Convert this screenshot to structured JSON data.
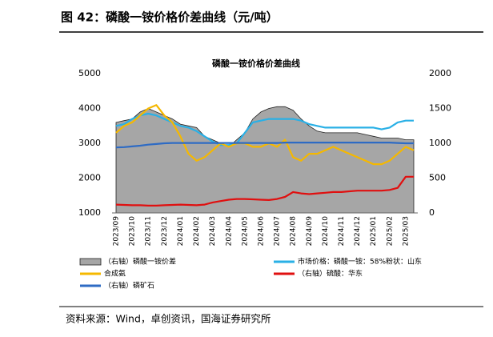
{
  "figure_title": "图 42：磷酸一铵价格价差曲线（元/吨）",
  "source": "资料来源：Wind，卓创资讯，国海证券研究所",
  "chart_data": {
    "type": "line",
    "title": "磷酸一铵价格价差曲线",
    "categories": [
      "2023/09",
      null,
      "2023/10",
      null,
      "2023/11",
      null,
      "2023/12",
      null,
      "2024/01",
      null,
      "2024/02",
      null,
      "2024/03",
      null,
      "2024/04",
      null,
      "2024/05",
      null,
      "2024/06",
      null,
      "2024/07",
      null,
      "2024/08",
      null,
      "2024/09",
      null,
      "2024/10",
      null,
      "2024/11",
      null,
      "2024/12",
      null,
      "2025/01",
      null,
      "2025/02",
      null,
      "2025/03",
      null
    ],
    "ylim": [
      1000,
      5000
    ],
    "yticks": [
      1000,
      2000,
      3000,
      4000,
      5000
    ],
    "y2lim": [
      0,
      2000
    ],
    "y2ticks": [
      0,
      500,
      1000,
      1500,
      2000
    ],
    "series": [
      {
        "name": "（右轴）磷酸一铵价差",
        "type": "area",
        "axis": "y2",
        "color": "#a6a6a6",
        "values": [
          1300,
          1325,
          1350,
          1450,
          1500,
          1450,
          1400,
          1350,
          1275,
          1250,
          1225,
          1100,
          1050,
          1000,
          950,
          1050,
          1150,
          1350,
          1450,
          1500,
          1525,
          1525,
          1475,
          1350,
          1250,
          1175,
          1150,
          1150,
          1150,
          1150,
          1150,
          1125,
          1100,
          1075,
          1075,
          1075,
          1050,
          1050
        ]
      },
      {
        "name": "市场价格：磷酸一铵：58%粉状：山东",
        "type": "line",
        "color": "#2ab0e6",
        "values": [
          3500,
          3550,
          3700,
          3800,
          3850,
          3800,
          3700,
          3600,
          3500,
          3450,
          3350,
          3200,
          3050,
          2950,
          2950,
          3000,
          3300,
          3600,
          3650,
          3700,
          3700,
          3700,
          3700,
          3650,
          3550,
          3500,
          3450,
          3450,
          3450,
          3450,
          3450,
          3450,
          3450,
          3400,
          3450,
          3600,
          3650,
          3650
        ]
      },
      {
        "name": "合成氨",
        "type": "line",
        "color": "#f5b800",
        "values": [
          3300,
          3500,
          3600,
          3800,
          4000,
          4100,
          3800,
          3600,
          3200,
          2700,
          2500,
          2600,
          2800,
          3000,
          2900,
          3000,
          3000,
          2900,
          2900,
          3000,
          2900,
          3100,
          2600,
          2500,
          2700,
          2700,
          2800,
          2900,
          2800,
          2700,
          2600,
          2500,
          2400,
          2400,
          2500,
          2700,
          2900,
          2800
        ]
      },
      {
        "name": "（右轴）硫酸：华东",
        "type": "line",
        "axis": "y2",
        "color": "#e01010",
        "values": [
          120,
          115,
          110,
          110,
          105,
          105,
          110,
          115,
          120,
          115,
          110,
          120,
          150,
          170,
          190,
          200,
          200,
          195,
          190,
          185,
          200,
          230,
          300,
          280,
          270,
          280,
          290,
          300,
          300,
          310,
          320,
          320,
          320,
          320,
          330,
          360,
          520,
          520
        ]
      },
      {
        "name": "（右轴）磷矿石",
        "type": "line",
        "axis": "y2",
        "color": "#2e6bc4",
        "values": [
          940,
          945,
          955,
          965,
          980,
          990,
          1000,
          1005,
          1005,
          1005,
          1005,
          1005,
          1005,
          1005,
          1005,
          1005,
          1005,
          1005,
          1005,
          1005,
          1005,
          1010,
          1010,
          1010,
          1010,
          1010,
          1010,
          1010,
          1010,
          1010,
          1010,
          1010,
          1010,
          1010,
          1010,
          1005,
          1000,
          1000
        ]
      }
    ]
  }
}
